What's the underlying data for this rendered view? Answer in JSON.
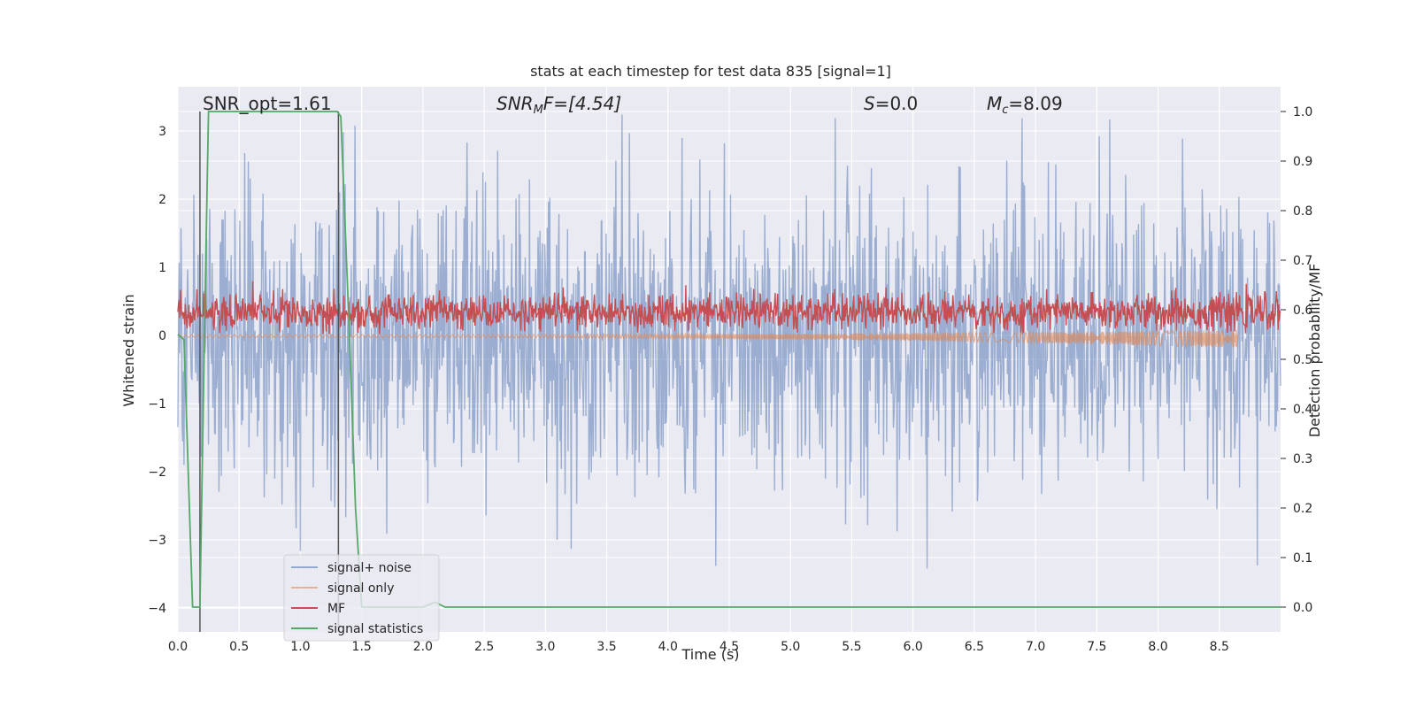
{
  "chart_data": {
    "type": "line",
    "title": "stats at each timestep for test data 835 [signal=1]",
    "xlabel": "Time (s)",
    "ylabel_left": "Whitened strain",
    "ylabel_right": "Detection probability/MF",
    "xlim": [
      0.0,
      9.0
    ],
    "ylim_left": [
      -4.35,
      3.65
    ],
    "ylim_right": [
      -0.05,
      1.05
    ],
    "x_ticks": [
      "0.0",
      "0.5",
      "1.0",
      "1.5",
      "2.0",
      "2.5",
      "3.0",
      "3.5",
      "4.0",
      "4.5",
      "5.0",
      "5.5",
      "6.0",
      "6.5",
      "7.0",
      "7.5",
      "8.0",
      "8.5"
    ],
    "y_left_ticks": [
      "3",
      "2",
      "1",
      "0",
      "−1",
      "−2",
      "−3",
      "−4"
    ],
    "y_right_ticks": [
      "1.0",
      "0.9",
      "0.8",
      "0.7",
      "0.6",
      "0.5",
      "0.4",
      "0.3",
      "0.2",
      "0.1",
      "0.0"
    ],
    "grid": true,
    "legend_position": "lower-left",
    "annotations": {
      "snr_opt": "SNR_opt=1.61",
      "snr_mf_base": "SNR",
      "snr_mf_sub": "M",
      "snr_mf_rest": "F=[4.54]",
      "s_base": "S",
      "s_rest": "=0.0",
      "mc_base": "M",
      "mc_sub": "c",
      "mc_rest": "=8.09"
    },
    "vertical_lines": [
      0.18,
      1.31
    ],
    "series": [
      {
        "name": "signal+ noise",
        "color": "#4c72b0",
        "axis": "left",
        "approx_range": [
          -4.0,
          3.3
        ]
      },
      {
        "name": "signal only",
        "color": "#dd8452",
        "axis": "left",
        "approx_range": [
          -0.15,
          0.05
        ]
      },
      {
        "name": "MF",
        "color": "#c44e52",
        "axis": "right",
        "approx_range": [
          0.55,
          0.68
        ]
      },
      {
        "name": "signal statistics",
        "color": "#55a868",
        "axis": "right",
        "x": [
          0.0,
          0.05,
          0.12,
          0.18,
          0.22,
          0.25,
          1.3,
          1.33,
          1.4,
          1.45,
          1.5,
          2.0,
          2.1,
          2.18,
          9.0
        ],
        "y": [
          0.55,
          0.54,
          0.0,
          0.0,
          0.6,
          1.0,
          1.0,
          0.99,
          0.55,
          0.2,
          0.0,
          0.0,
          0.01,
          0.0,
          0.0
        ]
      }
    ],
    "colors": {
      "plot_bg": "#eaeaf2",
      "grid": "#ffffff",
      "vline": "#555555"
    }
  }
}
